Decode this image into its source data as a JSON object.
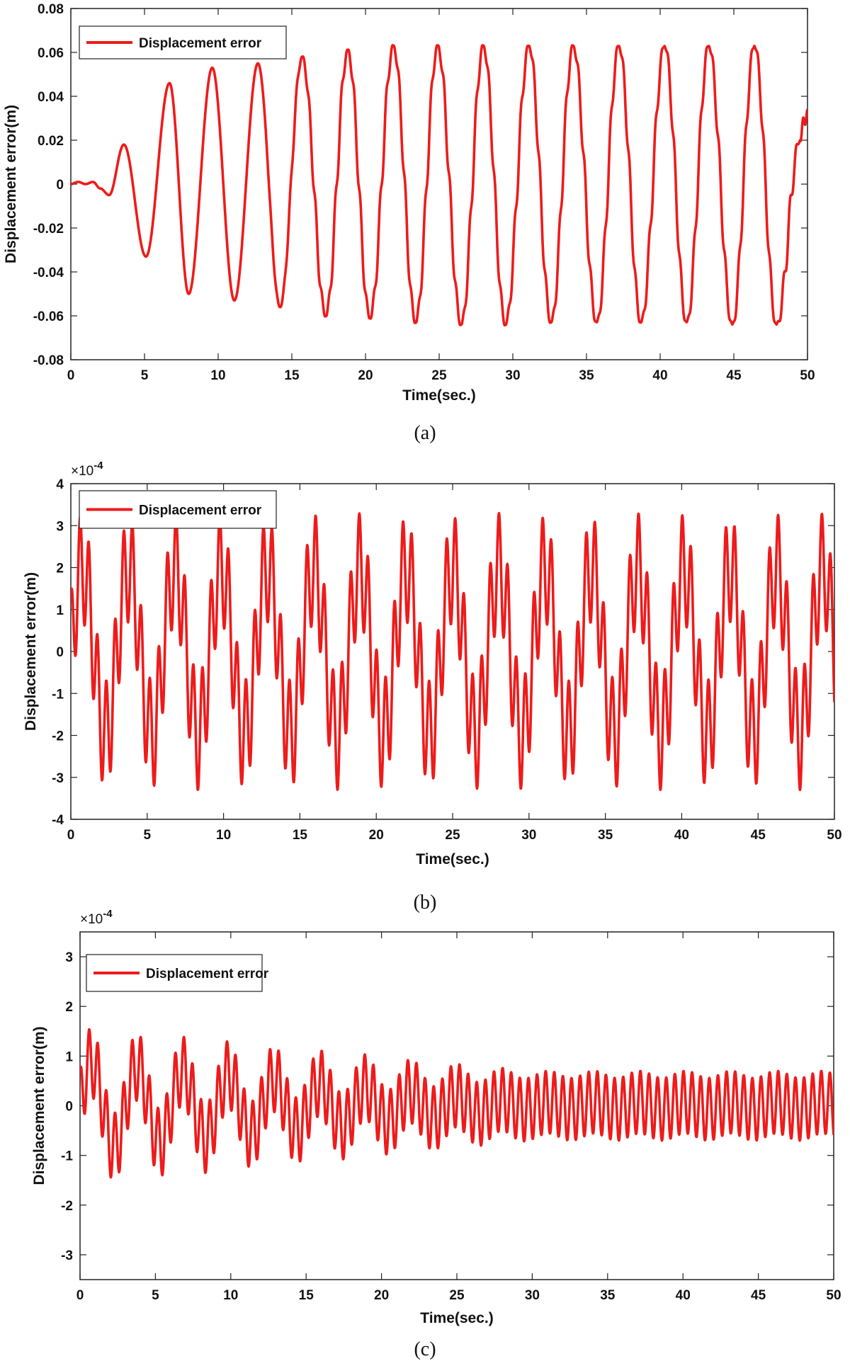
{
  "colors": {
    "series": "#ee1b1b",
    "axis": "#222222",
    "background": "#ffffff"
  },
  "chart_data": [
    {
      "panel": "a",
      "caption": "(a)",
      "type": "line",
      "xlabel": "Time(sec.)",
      "ylabel": "Displacement error(m)",
      "exponent": "",
      "xlim": [
        0,
        50
      ],
      "ylim": [
        -0.08,
        0.08
      ],
      "xticks": [
        0,
        5,
        10,
        15,
        20,
        25,
        30,
        35,
        40,
        45,
        50
      ],
      "xtick_labels": [
        "0",
        "5",
        "10",
        "15",
        "20",
        "25",
        "30",
        "35",
        "40",
        "45",
        "50"
      ],
      "yticks": [
        -0.08,
        -0.06,
        -0.04,
        -0.02,
        0,
        0.02,
        0.04,
        0.06,
        0.08
      ],
      "ytick_labels": [
        "-0.08",
        "-0.06",
        "-0.04",
        "-0.02",
        "0",
        "0.02",
        "0.04",
        "0.06",
        "0.08"
      ],
      "grid": false,
      "legend_position": "top-left",
      "series": [
        {
          "name": "Displacement error",
          "color": "#ee1b1b",
          "peaks": [
            [
              0,
              0
            ],
            [
              0.5,
              0.001
            ],
            [
              1.0,
              0.0
            ],
            [
              1.5,
              0.001
            ],
            [
              2.0,
              -0.002
            ],
            [
              2.6,
              -0.005
            ],
            [
              3.6,
              0.018
            ],
            [
              5.1,
              -0.033
            ],
            [
              6.7,
              0.046
            ],
            [
              8.0,
              -0.05
            ],
            [
              9.6,
              0.053
            ],
            [
              11.1,
              -0.053
            ],
            [
              12.7,
              0.055
            ],
            [
              14.2,
              -0.056
            ],
            [
              15.7,
              0.058
            ],
            [
              17.3,
              -0.06
            ],
            [
              18.8,
              0.061
            ],
            [
              20.3,
              -0.061
            ],
            [
              21.9,
              0.063
            ],
            [
              23.4,
              -0.063
            ],
            [
              24.9,
              0.063
            ],
            [
              26.5,
              -0.064
            ],
            [
              28.0,
              0.063
            ],
            [
              29.5,
              -0.064
            ],
            [
              31.1,
              0.063
            ],
            [
              32.6,
              -0.063
            ],
            [
              34.1,
              0.063
            ],
            [
              35.7,
              -0.063
            ],
            [
              37.2,
              0.063
            ],
            [
              38.7,
              -0.063
            ],
            [
              40.3,
              0.063
            ],
            [
              41.8,
              -0.063
            ],
            [
              43.3,
              0.063
            ],
            [
              44.9,
              -0.064
            ],
            [
              46.4,
              0.063
            ],
            [
              47.9,
              -0.064
            ],
            [
              49.5,
              0.02
            ],
            [
              50.0,
              0.034
            ]
          ],
          "ripple": {
            "amplitude": 0.006,
            "frequency_hz": 2.3,
            "start": 13
          }
        }
      ]
    },
    {
      "panel": "b",
      "caption": "(b)",
      "type": "line",
      "xlabel": "Time(sec.)",
      "ylabel": "Displacement error(m)",
      "exponent": "×10",
      "exponent_power": "-4",
      "xlim": [
        0,
        50
      ],
      "ylim": [
        -4,
        4
      ],
      "xticks": [
        0,
        5,
        10,
        15,
        20,
        25,
        30,
        35,
        40,
        45,
        50
      ],
      "xtick_labels": [
        "0",
        "5",
        "10",
        "15",
        "20",
        "25",
        "30",
        "35",
        "40",
        "45",
        "50"
      ],
      "yticks": [
        -4,
        -3,
        -2,
        -1,
        0,
        1,
        2,
        3,
        4
      ],
      "ytick_labels": [
        "-4",
        "-3",
        "-2",
        "-1",
        "0",
        "1",
        "2",
        "3",
        "4"
      ],
      "grid": false,
      "legend_position": "top-left",
      "series": [
        {
          "name": "Displacement error",
          "color": "#ee1b1b",
          "components": [
            {
              "amplitude": 2.0,
              "frequency_hz": 0.33,
              "phase": 0.0
            },
            {
              "amplitude": 1.3,
              "frequency_hz": 1.75,
              "phase": 1.2
            }
          ],
          "observed_range": [
            -3.3,
            3.3
          ]
        }
      ]
    },
    {
      "panel": "c",
      "caption": "(c)",
      "type": "line",
      "xlabel": "Time(sec.)",
      "ylabel": "Displacement error(m)",
      "exponent": "×10",
      "exponent_power": "-4",
      "xlim": [
        0,
        50
      ],
      "ylim": [
        -3.5,
        3.5
      ],
      "xticks": [
        0,
        5,
        10,
        15,
        20,
        25,
        30,
        35,
        40,
        45,
        50
      ],
      "xtick_labels": [
        "0",
        "5",
        "10",
        "15",
        "20",
        "25",
        "30",
        "35",
        "40",
        "45",
        "50"
      ],
      "yticks": [
        -3,
        -2,
        -1,
        0,
        1,
        2,
        3
      ],
      "ytick_labels": [
        "-3",
        "-2",
        "-1",
        "0",
        "1",
        "2",
        "3"
      ],
      "grid": false,
      "legend_position": "top-left",
      "series": [
        {
          "name": "Displacement error",
          "color": "#ee1b1b",
          "components": [
            {
              "amplitude": 0.9,
              "frequency_hz": 0.33,
              "phase": 0.0,
              "decay_to": 0.08
            },
            {
              "amplitude": 0.7,
              "frequency_hz": 1.75,
              "phase": 1.2,
              "decay_to": 0.9
            }
          ],
          "observed_range": [
            -1.6,
            1.7
          ]
        }
      ]
    }
  ]
}
